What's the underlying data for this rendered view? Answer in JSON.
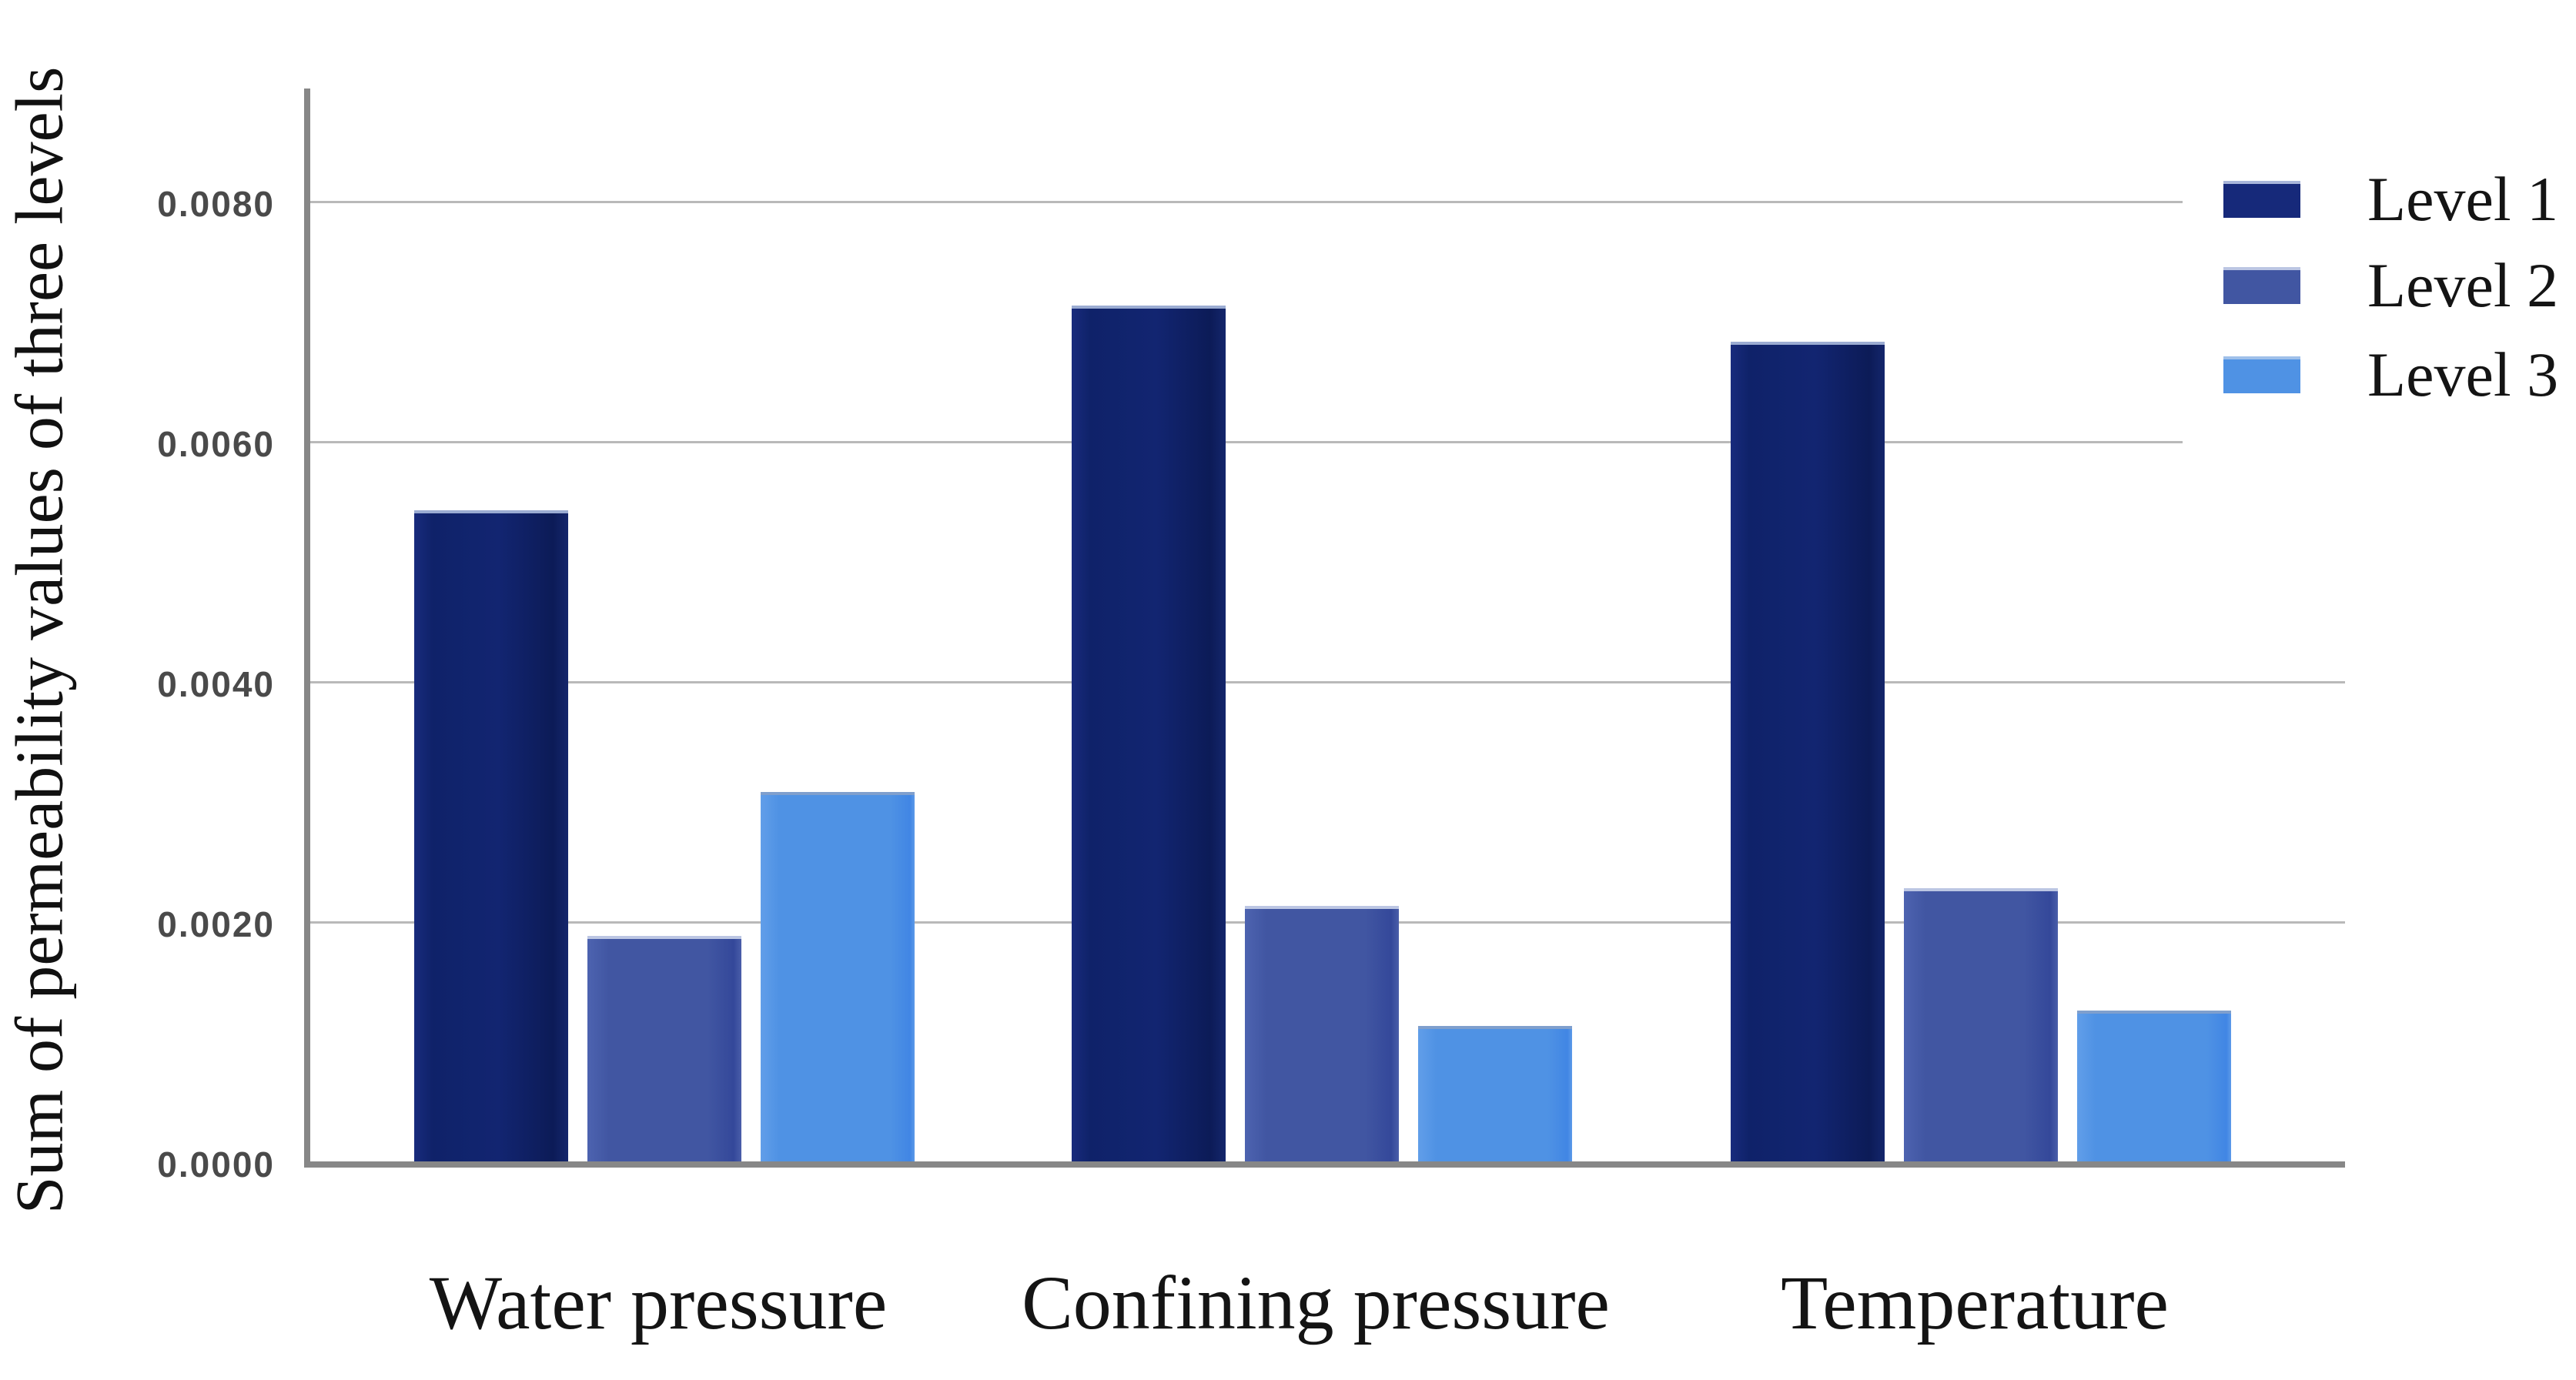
{
  "chart_data": {
    "type": "bar",
    "title": "",
    "categories": [
      "Water pressure",
      "Confining pressure",
      "Temperature"
    ],
    "series": [
      {
        "name": "Level 1",
        "color": "#112470",
        "values": [
          0.0054,
          0.0071,
          0.0068
        ]
      },
      {
        "name": "Level 2",
        "color": "#4057A4",
        "values": [
          0.00185,
          0.0021,
          0.00225
        ]
      },
      {
        "name": "Level 3",
        "color": "#4F92E4",
        "values": [
          0.00305,
          0.0011,
          0.00123
        ]
      }
    ],
    "xlabel": "",
    "ylabel": "Sum of permeability values of three levels",
    "ylim": [
      0,
      0.0089
    ],
    "ytick_values": [
      0.0,
      0.002,
      0.004,
      0.006,
      0.008
    ],
    "ytick_labels": [
      "0.0000",
      "0.0020",
      "0.0040",
      "0.0060",
      "0.0080"
    ],
    "grid": true,
    "legend_position": "top-right",
    "legend_labels": [
      "Level 1",
      "Level 2",
      "Level 3"
    ]
  },
  "colors": {
    "axis": "#878787",
    "gridline": "#b9b9b9",
    "tick_text": "#4a4a4a",
    "label_text": "#141414",
    "background": "#ffffff"
  }
}
